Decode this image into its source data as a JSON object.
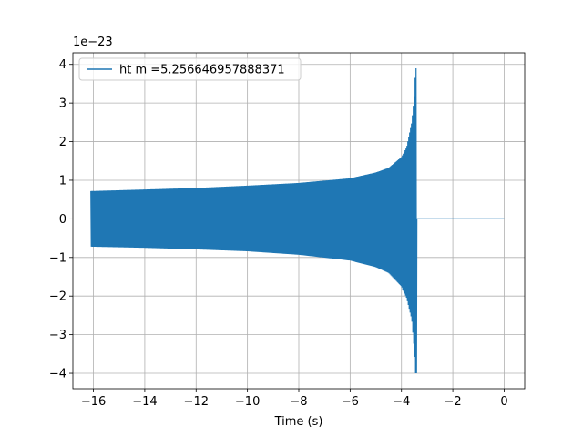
{
  "chart_data": {
    "type": "line",
    "xlabel": "Time (s)",
    "ylabel": "",
    "y_scale_label": "1e−23",
    "y_multiplier": 1e-23,
    "xlim": [
      -16.8,
      0.8
    ],
    "ylim": [
      -4.4,
      4.3
    ],
    "x_ticks": [
      -16,
      -14,
      -12,
      -10,
      -8,
      -6,
      -4,
      -2,
      0
    ],
    "x_tick_labels": [
      "−16",
      "−14",
      "−12",
      "−10",
      "−8",
      "−6",
      "−4",
      "−2",
      "0"
    ],
    "y_ticks": [
      -4,
      -3,
      -2,
      -1,
      0,
      1,
      2,
      3,
      4
    ],
    "y_tick_labels": [
      "−4",
      "−3",
      "−2",
      "−1",
      "0",
      "1",
      "2",
      "3",
      "4"
    ],
    "grid": true,
    "legend_position": "top-left",
    "series": [
      {
        "name": "ht m =5.256646957888371",
        "color": "#1f77b4",
        "signal": "chirp",
        "x_start": -16.1,
        "x_merger": -3.4,
        "x_end": 0.0,
        "envelope": {
          "x": [
            -16.1,
            -14,
            -12,
            -10,
            -8,
            -6,
            -5,
            -4.5,
            -4,
            -3.8,
            -3.6,
            -3.5,
            -3.45,
            -3.4
          ],
          "upper": [
            0.72,
            0.76,
            0.8,
            0.86,
            0.93,
            1.05,
            1.2,
            1.32,
            1.6,
            1.85,
            2.5,
            3.2,
            3.9,
            3.9
          ],
          "lower": [
            -0.72,
            -0.75,
            -0.79,
            -0.84,
            -0.93,
            -1.08,
            -1.25,
            -1.4,
            -1.75,
            -2.05,
            -2.6,
            -3.4,
            -4.0,
            -4.0
          ]
        },
        "post_merger_value": 0
      }
    ]
  }
}
